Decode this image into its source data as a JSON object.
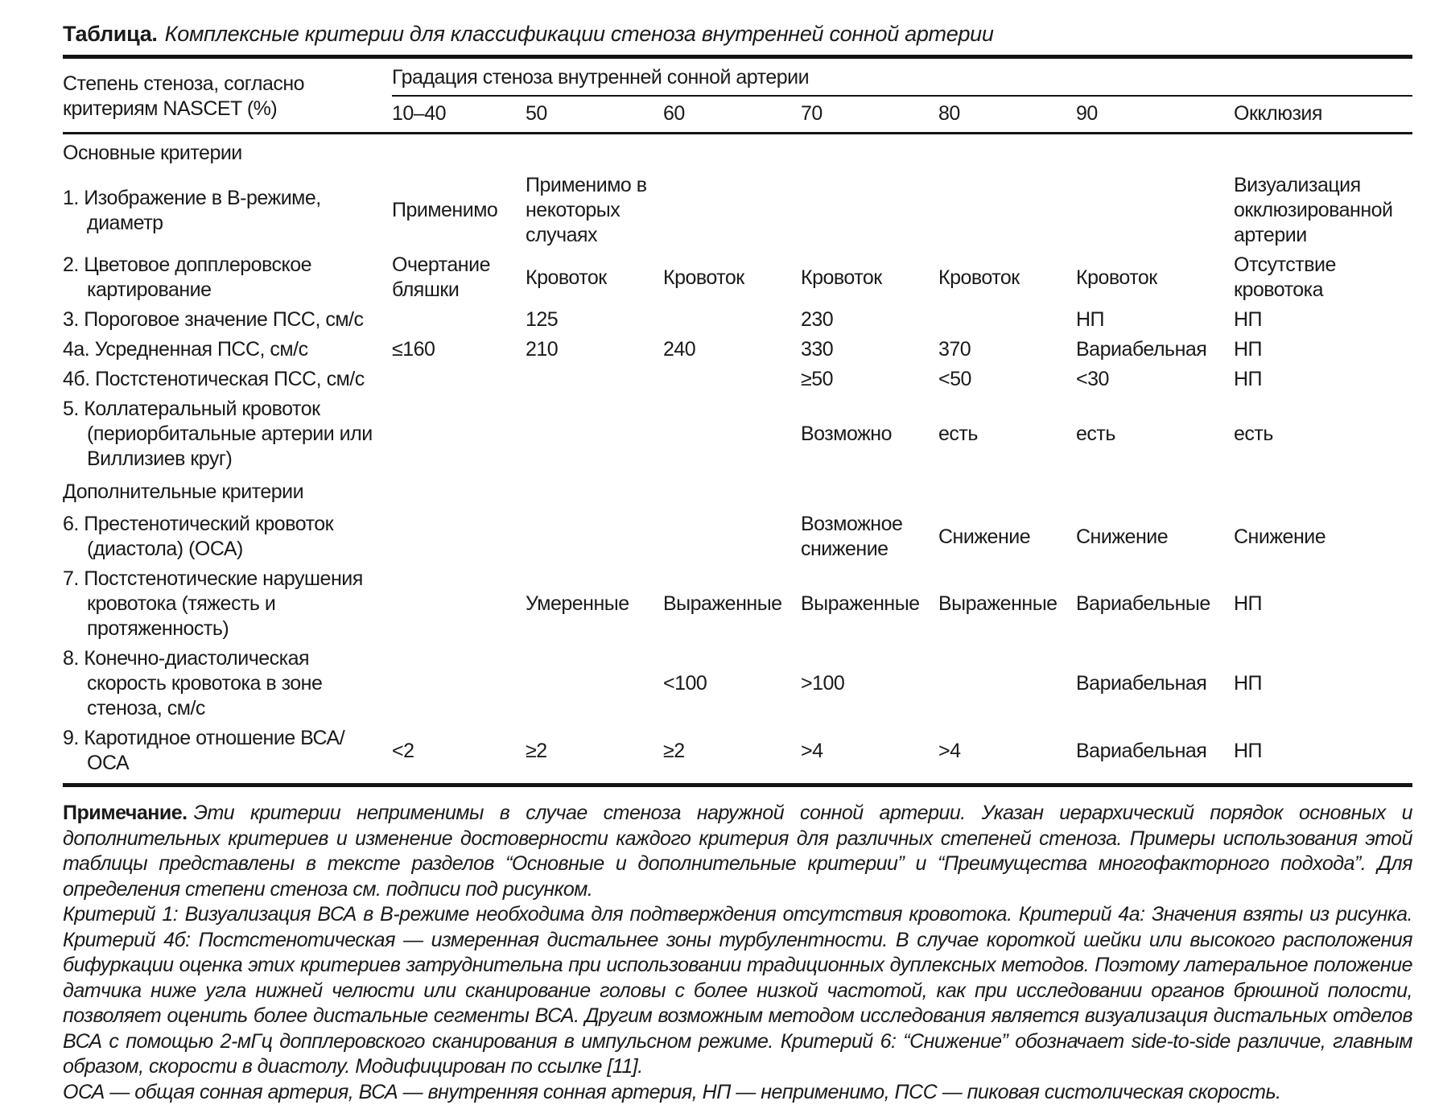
{
  "page": {
    "title_label": "Таблица.",
    "title_text": "Комплексные критерии для классификации стеноза внутренней сонной артерии"
  },
  "table": {
    "stub_header": "Степень стеноза, согласно критериям NASCET (%)",
    "span_header": "Градация стеноза внутренней сонной артерии",
    "columns": [
      "10–40",
      "50",
      "60",
      "70",
      "80",
      "90",
      "Окклюзия"
    ],
    "sections": [
      {
        "label": "Основные критерии",
        "rows": [
          {
            "label": "1. Изображение в В-режиме, диаметр",
            "cells": [
              "Применимо",
              "Применимо в некоторых случаях",
              "",
              "",
              "",
              "",
              "Визуализация окклюзированной артерии"
            ]
          },
          {
            "label": "2. Цветовое допплеровское картирование",
            "cells": [
              "Очертание бляшки",
              "Кровоток",
              "Кровоток",
              "Кровоток",
              "Кровоток",
              "Кровоток",
              "Отсутствие кровотока"
            ]
          },
          {
            "label": "3. Пороговое значение ПСС, см/с",
            "cells": [
              "",
              "125",
              "",
              "230",
              "",
              "НП",
              "НП"
            ]
          },
          {
            "label": "4а. Усредненная ПСС, см/с",
            "cells": [
              "≤160",
              "210",
              "240",
              "330",
              "370",
              "Вариабельная",
              "НП"
            ]
          },
          {
            "label": "4б. Постстенотическая ПСС, см/с",
            "cells": [
              "",
              "",
              "",
              "≥50",
              "<50",
              "<30",
              "НП"
            ]
          },
          {
            "label": "5. Коллатеральный кровоток (периорбитальные артерии или Виллизиев круг)",
            "cells": [
              "",
              "",
              "",
              "Возможно",
              "есть",
              "есть",
              "есть"
            ]
          }
        ]
      },
      {
        "label": "Дополнительные критерии",
        "rows": [
          {
            "label": "6. Престенотический кровоток (диастола) (ОСА)",
            "cells": [
              "",
              "",
              "",
              "Возможное снижение",
              "Снижение",
              "Снижение",
              "Снижение"
            ]
          },
          {
            "label": "7. Постстенотические нарушения кровотока (тяжесть и протяженность)",
            "cells": [
              "",
              "Умеренные",
              "Выраженные",
              "Выраженные",
              "Выраженные",
              "Вариабельные",
              "НП"
            ]
          },
          {
            "label": "8. Конечно-диастолическая скорость кровотока в зоне стеноза, см/с",
            "cells": [
              "",
              "",
              "<100",
              ">100",
              "",
              "Вариабельная",
              "НП"
            ]
          },
          {
            "label": "9. Каротидное отношение ВСА/ОСА",
            "cells": [
              "<2",
              "≥2",
              "≥2",
              ">4",
              ">4",
              "Вариабельная",
              "НП"
            ]
          }
        ]
      }
    ]
  },
  "notes": {
    "label": "Примечание.",
    "p1": "Эти критерии неприменимы в случае стеноза наружной сонной артерии. Указан иерархический порядок основных и дополнительных критериев и изменение достоверности каждого критерия для различных степеней стеноза. Примеры использования этой таблицы представлены в тексте разделов “Основные и дополнительные критерии” и “Преимущества многофакторного подхода”. Для определения степени стеноза см. подписи под рисунком.",
    "p2": "Критерий 1: Визуализация ВСА в В-режиме необходима для подтверждения отсутствия кровотока. Критерий 4а: Значения взяты из рисунка. Критерий 4б: Постстенотическая — измеренная дистальнее зоны турбулентности. В случае короткой шейки или высокого расположения бифуркации оценка этих критериев затруднительна при использовании традиционных дуплексных методов. Поэтому латеральное положение датчика ниже угла нижней челюсти или сканирование головы с более низкой частотой, как при исследовании органов брюшной полости, позволяет оценить более дистальные сегменты ВСА. Другим возможным методом исследования является визуализация дистальных отделов ВСА с помощью 2-мГц допплеровского сканирования в импульсном режиме. Критерий 6: “Снижение” обозначает side-to-side различие, главным образом, скорости в диастолу. Модифицирован по ссылке [11].",
    "p3": "ОСА — общая сонная артерия, ВСА — внутренняя сонная артерия, НП — неприменимо, ПСС — пиковая систолическая скорость."
  }
}
